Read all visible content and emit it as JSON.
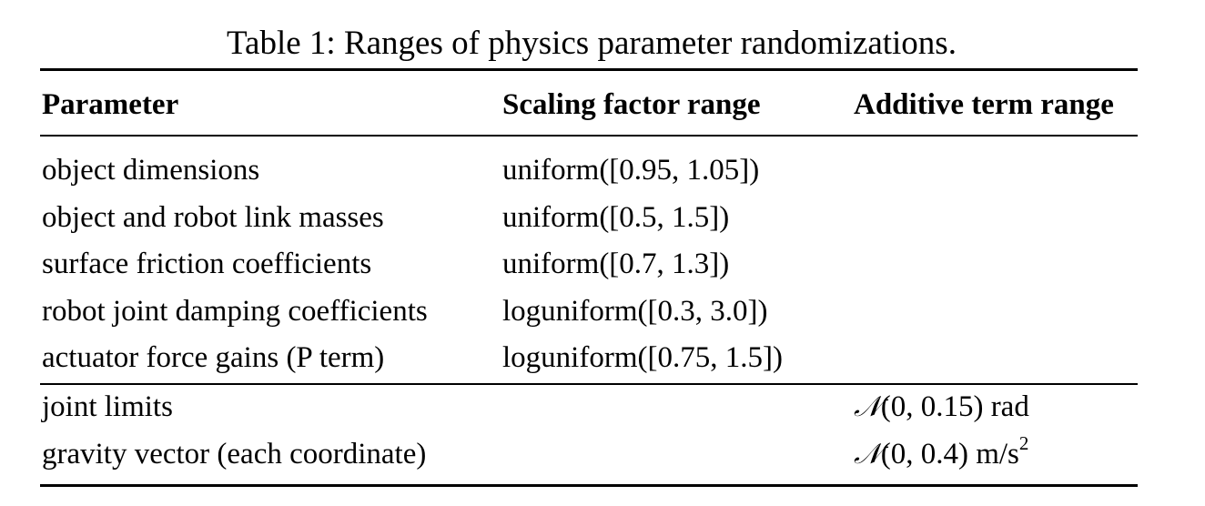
{
  "caption": "Table 1: Ranges of physics parameter randomizations.",
  "table": {
    "headers": {
      "parameter": "Parameter",
      "scaling": "Scaling factor range",
      "additive": "Additive term range"
    },
    "rows": [
      {
        "parameter": "object dimensions",
        "scaling": "uniform([0.95, 1.05])",
        "additive": ""
      },
      {
        "parameter": "object and robot link masses",
        "scaling": "uniform([0.5, 1.5])",
        "additive": ""
      },
      {
        "parameter": "surface friction coefficients",
        "scaling": "uniform([0.7, 1.3])",
        "additive": ""
      },
      {
        "parameter": "robot joint damping coefficients",
        "scaling": "loguniform([0.3, 3.0])",
        "additive": ""
      },
      {
        "parameter": "actuator force gains (P term)",
        "scaling": "loguniform([0.75, 1.5])",
        "additive": ""
      },
      {
        "parameter": "joint limits",
        "scaling": "",
        "additive_symbol": "𝒩",
        "additive_args": "(0, 0.15)",
        "additive_unit": "rad",
        "additive_unit_sup": ""
      },
      {
        "parameter": "gravity vector (each coordinate)",
        "scaling": "",
        "additive_symbol": "𝒩",
        "additive_args": "(0, 0.4)",
        "additive_unit": "m/s",
        "additive_unit_sup": "2"
      }
    ]
  }
}
